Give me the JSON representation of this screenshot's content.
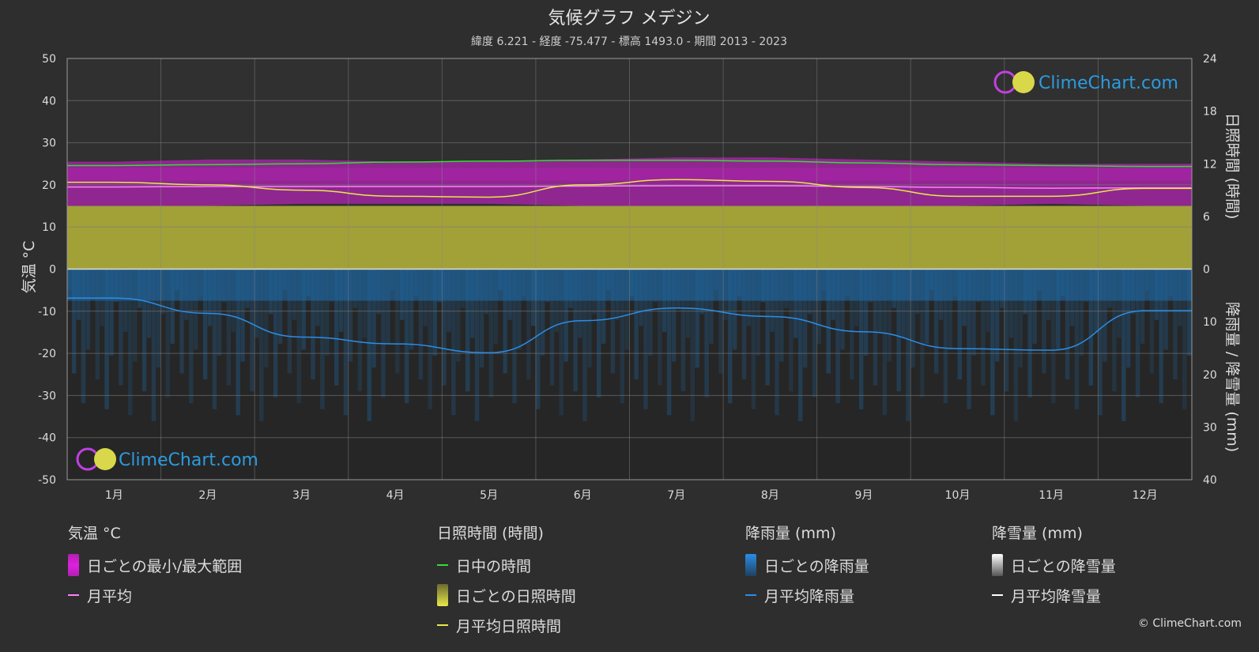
{
  "title": "気候グラフ メデジン",
  "subtitle": "緯度 6.221 - 経度 -75.477 - 標高 1493.0 - 期間 2013 - 2023",
  "watermark": "ClimeChart.com",
  "copyright": "© ClimeChart.com",
  "colors": {
    "background": "#2e2e2e",
    "temp_range": "#e020e0",
    "temp_mean": "#ff80ff",
    "daylight": "#33dd33",
    "sunshine_fill": "#b5b53a",
    "sunshine_line": "#e8e84a",
    "rain_fill": "#1f6fb0",
    "rain_line": "#2b8ee6",
    "snow": "#ffffff",
    "watermark_text": "#2b9be0"
  },
  "legend": {
    "temperature": {
      "title": "気温 °C",
      "items": [
        "日ごとの最小/最大範囲",
        "月平均"
      ]
    },
    "sunshine": {
      "title": "日照時間 (時間)",
      "items": [
        "日中の時間",
        "日ごとの日照時間",
        "月平均日照時間"
      ]
    },
    "rain": {
      "title": "降雨量 (mm)",
      "items": [
        "日ごとの降雨量",
        "月平均降雨量"
      ]
    },
    "snow": {
      "title": "降雪量 (mm)",
      "items": [
        "日ごとの降雪量",
        "月平均降雪量"
      ]
    }
  },
  "chart_data": {
    "type": "area",
    "months": [
      "1月",
      "2月",
      "3月",
      "4月",
      "5月",
      "6月",
      "7月",
      "8月",
      "9月",
      "10月",
      "11月",
      "12月"
    ],
    "axes": {
      "left": {
        "label": "気温 °C",
        "min": -50,
        "max": 50,
        "ticks": [
          50,
          40,
          30,
          20,
          10,
          0,
          -10,
          -20,
          -30,
          -40,
          -50
        ]
      },
      "right_top": {
        "label": "日照時間 (時間)",
        "min": 0,
        "max": 24,
        "ticks": [
          24,
          18,
          12,
          6,
          0
        ]
      },
      "right_bottom": {
        "label": "降雨量 / 降雪量 (mm)",
        "min": 0,
        "max": 40,
        "ticks": [
          0,
          10,
          20,
          30,
          40
        ]
      }
    },
    "series": [
      {
        "name": "日ごとの最小/最大範囲",
        "unit": "°C",
        "min": [
          15,
          15,
          15.5,
          15.5,
          15.5,
          15,
          15,
          15,
          15,
          15,
          15.5,
          15
        ],
        "max": [
          25.5,
          26,
          26,
          25.5,
          25.5,
          26,
          26.5,
          26.5,
          26,
          25.5,
          25,
          25
        ]
      },
      {
        "name": "月平均",
        "unit": "°C",
        "values": [
          19.5,
          19.6,
          19.6,
          19.6,
          19.6,
          19.7,
          19.8,
          19.8,
          19.6,
          19.4,
          19.2,
          19.3
        ]
      },
      {
        "name": "日中の時間",
        "unit": "h",
        "values": [
          11.8,
          11.9,
          12.0,
          12.2,
          12.3,
          12.4,
          12.4,
          12.3,
          12.1,
          11.9,
          11.8,
          11.7
        ]
      },
      {
        "name": "日ごとの日照時間",
        "unit": "h",
        "values": [
          7.2,
          7.2,
          7.2,
          7.2,
          7.2,
          7.2,
          7.2,
          7.2,
          7.2,
          7.2,
          7.2,
          7.2
        ]
      },
      {
        "name": "月平均日照時間",
        "unit": "h",
        "values": [
          9.9,
          9.6,
          9.0,
          8.3,
          8.2,
          9.6,
          10.2,
          10.0,
          9.3,
          8.3,
          8.3,
          9.2
        ]
      },
      {
        "name": "月平均降雨量",
        "unit": "mm",
        "values": [
          5.5,
          8.4,
          12.9,
          14.2,
          15.9,
          9.8,
          7.4,
          9.0,
          11.9,
          15.1,
          15.4,
          7.9
        ]
      },
      {
        "name": "月平均降雪量",
        "unit": "mm",
        "values": [
          0,
          0,
          0,
          0,
          0,
          0,
          0,
          0,
          0,
          0,
          0,
          0
        ]
      }
    ]
  }
}
